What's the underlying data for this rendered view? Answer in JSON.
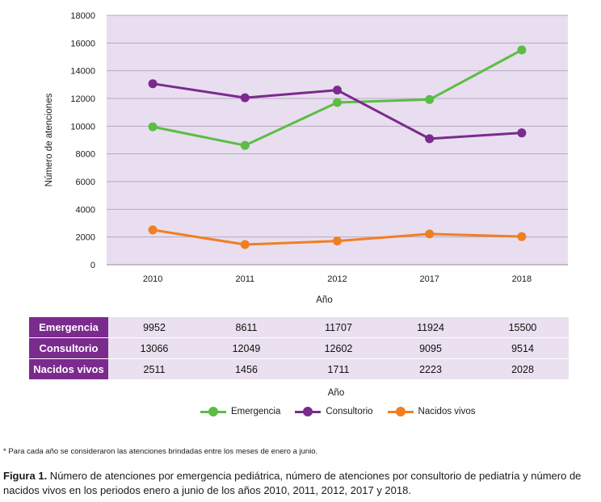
{
  "chart_data": {
    "type": "line",
    "x": [
      "2010",
      "2011",
      "2012",
      "2017",
      "2018"
    ],
    "xlabel": "Año",
    "ylabel": "Número de atenciones",
    "ylim": [
      0,
      18000
    ],
    "yticks": [
      "0",
      "2000",
      "4000",
      "6000",
      "8000",
      "10000",
      "12000",
      "14000",
      "16000",
      "18000"
    ],
    "grid": true,
    "series": [
      {
        "name": "Emergencia",
        "color": "#5cbd45",
        "values": [
          9952,
          8611,
          11707,
          11924,
          15500
        ]
      },
      {
        "name": "Consultorio",
        "color": "#7b2a8e",
        "values": [
          13066,
          12049,
          12602,
          9095,
          9514
        ]
      },
      {
        "name": "Nacidos vivos",
        "color": "#f07f22",
        "values": [
          2511,
          1456,
          1711,
          2223,
          2028
        ]
      }
    ],
    "legend_position": "bottom",
    "plot_background": "#e8deef"
  },
  "table": {
    "xlabel": "Año",
    "rows": [
      {
        "label": "Emergencia",
        "values": [
          "9952",
          "8611",
          "11707",
          "11924",
          "15500"
        ]
      },
      {
        "label": "Consultorio",
        "values": [
          "13066",
          "12049",
          "12602",
          "9095",
          "9514"
        ]
      },
      {
        "label": "Nacidos vivos",
        "values": [
          "2511",
          "1456",
          "1711",
          "2223",
          "2028"
        ]
      }
    ]
  },
  "legend": {
    "items": [
      {
        "label": "Emergencia",
        "color": "#5cbd45"
      },
      {
        "label": "Consultorio",
        "color": "#7b2a8e"
      },
      {
        "label": "Nacidos vivos",
        "color": "#f07f22"
      }
    ]
  },
  "footnote": "* Para cada año se consideraron las atenciones brindadas entre los meses de enero a junio.",
  "caption": {
    "label": "Figura 1.",
    "text": " Número de atenciones por emergencia pediátrica, número de atenciones por consultorio de pediatría y número de nacidos vivos en los periodos enero a junio de los años 2010, 2011, 2012, 2017 y 2018."
  }
}
